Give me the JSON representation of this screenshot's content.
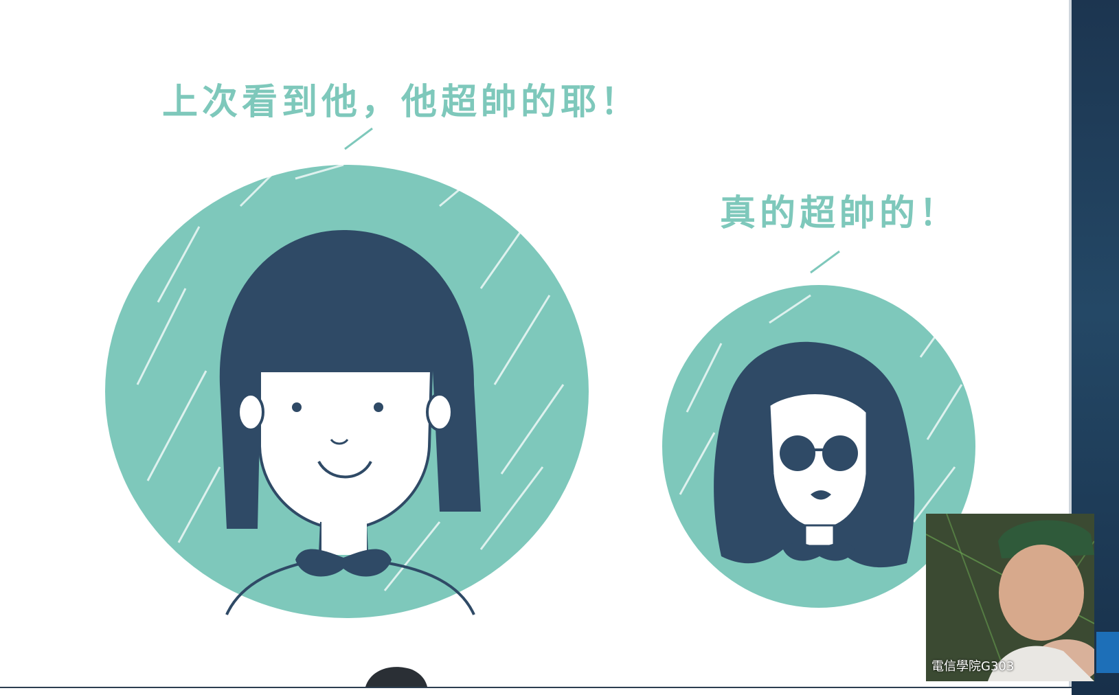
{
  "slide": {
    "bubble_left": "上次看到他，他超帥的耶！",
    "bubble_right": "真的超帥的！"
  },
  "webcam": {
    "label": "電信學院G303"
  },
  "colors": {
    "teal": "#7ec8bb",
    "navy": "#2f4a66",
    "sidebar": "#1c3550"
  }
}
